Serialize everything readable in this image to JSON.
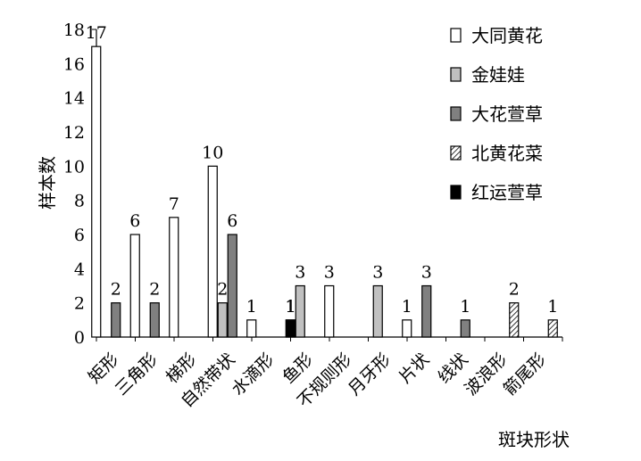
{
  "chart_data": {
    "type": "bar",
    "xlabel": "斑块形状",
    "ylabel": "样本数",
    "ylim": [
      0,
      18
    ],
    "yticks": [
      0,
      2,
      4,
      6,
      8,
      10,
      12,
      14,
      16,
      18
    ],
    "grid": false,
    "legend_position": "right",
    "categories": [
      "矩形",
      "三角形",
      "梯形",
      "自然带状",
      "水滴形",
      "鱼形",
      "不规则形",
      "月牙形",
      "片状",
      "线状",
      "波浪形",
      "箭尾形"
    ],
    "series": [
      {
        "name": "大同黄花",
        "values": [
          17,
          6,
          7,
          10,
          1,
          1,
          3,
          0,
          1,
          0,
          0,
          0
        ],
        "labels": [
          "17",
          "6",
          "7",
          "10",
          "1",
          "1",
          "3",
          "",
          "1",
          "",
          "",
          ""
        ]
      },
      {
        "name": "金娃娃",
        "values": [
          0,
          0,
          0,
          2,
          0,
          3,
          0,
          3,
          0,
          0,
          0,
          0
        ],
        "labels": [
          "",
          "",
          "",
          "2",
          "",
          "3",
          "",
          "3",
          "",
          "",
          "",
          ""
        ]
      },
      {
        "name": "大花萱草",
        "values": [
          2,
          2,
          0,
          6,
          0,
          0,
          0,
          0,
          3,
          1,
          0,
          0
        ],
        "labels": [
          "2",
          "2",
          "",
          "6",
          "",
          "",
          "",
          "",
          "3",
          "1",
          "",
          ""
        ]
      },
      {
        "name": "北黄花菜",
        "values": [
          0,
          0,
          0,
          0,
          0,
          0,
          0,
          0,
          0,
          0,
          2,
          1
        ],
        "labels": [
          "",
          "",
          "",
          "",
          "",
          "",
          "",
          "",
          "",
          "",
          "2",
          "1"
        ]
      },
      {
        "name": "红运萱草",
        "values": [
          0,
          0,
          0,
          0,
          1,
          0,
          0,
          0,
          0,
          0,
          0,
          0
        ],
        "labels": [
          "",
          "",
          "",
          "",
          "1",
          "",
          "",
          "",
          "",
          "",
          "",
          ""
        ]
      }
    ]
  }
}
